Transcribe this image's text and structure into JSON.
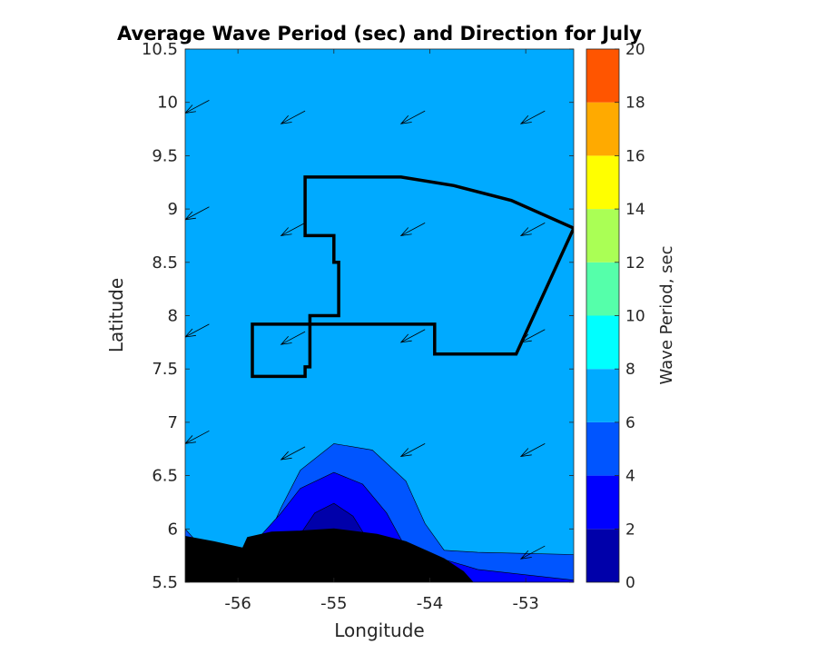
{
  "chart_data": {
    "type": "heatmap",
    "title": "Average Wave Period (sec) and Direction for July",
    "xlabel": "Longitude",
    "ylabel": "Latitude",
    "xlim": [
      -56.55,
      -52.5
    ],
    "ylim": [
      5.5,
      10.5
    ],
    "xticks": [
      -56,
      -55,
      -54,
      -53
    ],
    "yticks": [
      5.5,
      6,
      6.5,
      7,
      7.5,
      8,
      8.5,
      9,
      9.5,
      10,
      10.5
    ],
    "colorbar": {
      "label": "Wave Period, sec",
      "ticks": [
        0,
        2,
        4,
        6,
        8,
        10,
        12,
        14,
        16,
        18,
        20
      ],
      "levels": [
        {
          "min": 0,
          "max": 2,
          "color": "#0000aa"
        },
        {
          "min": 2,
          "max": 4,
          "color": "#0000ff"
        },
        {
          "min": 4,
          "max": 6,
          "color": "#0055ff"
        },
        {
          "min": 6,
          "max": 8,
          "color": "#00aaff"
        },
        {
          "min": 8,
          "max": 10,
          "color": "#00ffff"
        },
        {
          "min": 10,
          "max": 12,
          "color": "#55ffaa"
        },
        {
          "min": 12,
          "max": 14,
          "color": "#aaff55"
        },
        {
          "min": 14,
          "max": 16,
          "color": "#ffff00"
        },
        {
          "min": 16,
          "max": 18,
          "color": "#ffaa00"
        },
        {
          "min": 18,
          "max": 20,
          "color": "#ff5500"
        }
      ]
    },
    "background_period_range": [
      6,
      8
    ],
    "contours": [
      {
        "range": [
          4,
          6
        ],
        "color": "#0055ff",
        "points": [
          [
            -56.55,
            6.0
          ],
          [
            -56.3,
            5.75
          ],
          [
            -55.95,
            5.72
          ],
          [
            -55.7,
            5.9
          ],
          [
            -55.55,
            6.2
          ],
          [
            -55.35,
            6.55
          ],
          [
            -55.0,
            6.8
          ],
          [
            -54.6,
            6.74
          ],
          [
            -54.25,
            6.45
          ],
          [
            -54.05,
            6.05
          ],
          [
            -53.85,
            5.8
          ],
          [
            -53.5,
            5.78
          ],
          [
            -53.0,
            5.77
          ],
          [
            -52.5,
            5.76
          ],
          [
            -52.5,
            5.5
          ],
          [
            -56.55,
            5.5
          ]
        ]
      },
      {
        "range": [
          2,
          4
        ],
        "color": "#0000ff",
        "points": [
          [
            -55.75,
            5.95
          ],
          [
            -55.55,
            6.15
          ],
          [
            -55.35,
            6.38
          ],
          [
            -55.0,
            6.53
          ],
          [
            -54.7,
            6.42
          ],
          [
            -54.45,
            6.15
          ],
          [
            -54.25,
            5.82
          ],
          [
            -53.5,
            5.62
          ],
          [
            -52.5,
            5.52
          ],
          [
            -52.5,
            5.5
          ],
          [
            -55.75,
            5.5
          ]
        ]
      },
      {
        "range": [
          0,
          2
        ],
        "color": "#0000aa",
        "points": [
          [
            -55.35,
            5.95
          ],
          [
            -55.2,
            6.15
          ],
          [
            -55.0,
            6.24
          ],
          [
            -54.8,
            6.12
          ],
          [
            -54.65,
            5.9
          ],
          [
            -54.5,
            5.7
          ],
          [
            -55.35,
            5.7
          ]
        ]
      }
    ],
    "land": [
      {
        "name": "coastline",
        "points": [
          [
            -56.55,
            5.93
          ],
          [
            -56.25,
            5.88
          ],
          [
            -55.95,
            5.82
          ],
          [
            -55.9,
            5.92
          ],
          [
            -55.65,
            5.97
          ],
          [
            -55.35,
            5.98
          ],
          [
            -55.0,
            6.0
          ],
          [
            -54.55,
            5.95
          ],
          [
            -54.25,
            5.88
          ],
          [
            -54.0,
            5.78
          ],
          [
            -53.85,
            5.72
          ],
          [
            -53.65,
            5.6
          ],
          [
            -53.55,
            5.5
          ],
          [
            -56.55,
            5.5
          ]
        ]
      }
    ],
    "boundaries": [
      {
        "name": "block-polygon",
        "points": [
          [
            -55.3,
            9.3
          ],
          [
            -54.3,
            9.3
          ],
          [
            -53.75,
            9.22
          ],
          [
            -53.15,
            9.08
          ],
          [
            -52.5,
            8.82
          ],
          [
            -53.1,
            7.64
          ],
          [
            -53.95,
            7.64
          ],
          [
            -53.95,
            7.92
          ],
          [
            -55.85,
            7.92
          ],
          [
            -55.85,
            7.43
          ],
          [
            -55.3,
            7.43
          ],
          [
            -55.3,
            7.52
          ],
          [
            -55.25,
            7.52
          ],
          [
            -55.25,
            8.0
          ],
          [
            -54.95,
            8.0
          ],
          [
            -54.95,
            8.5
          ],
          [
            -55.0,
            8.5
          ],
          [
            -55.0,
            8.75
          ],
          [
            -55.3,
            8.75
          ]
        ]
      }
    ],
    "direction_arrows": {
      "points": [
        [
          -56.55,
          9.9
        ],
        [
          -55.55,
          9.8
        ],
        [
          -54.3,
          9.8
        ],
        [
          -53.05,
          9.8
        ],
        [
          -56.55,
          8.9
        ],
        [
          -55.55,
          8.75
        ],
        [
          -54.3,
          8.75
        ],
        [
          -53.05,
          8.75
        ],
        [
          -56.55,
          7.8
        ],
        [
          -55.55,
          7.73
        ],
        [
          -54.3,
          7.75
        ],
        [
          -53.05,
          7.75
        ],
        [
          -56.55,
          6.8
        ],
        [
          -55.55,
          6.65
        ],
        [
          -54.3,
          6.68
        ],
        [
          -53.05,
          6.68
        ],
        [
          -56.55,
          5.75
        ],
        [
          -55.55,
          5.62
        ],
        [
          -54.3,
          5.62
        ],
        [
          -53.05,
          5.72
        ]
      ],
      "vector": [
        0.25,
        0.12
      ]
    }
  }
}
